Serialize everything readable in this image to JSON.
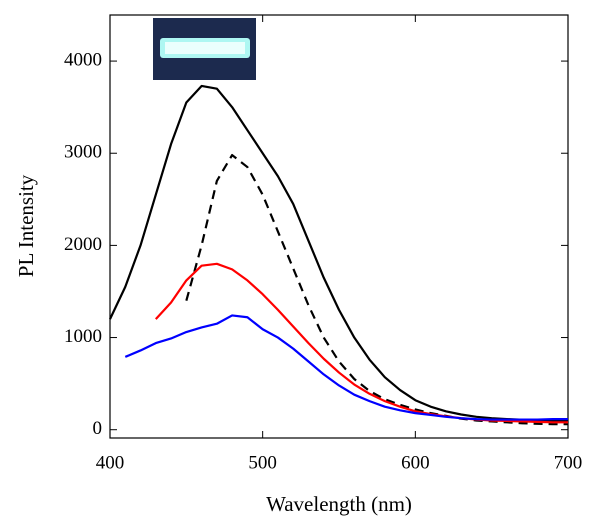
{
  "chart_data": {
    "type": "line",
    "x_label": "Wavelength (nm)",
    "y_label": "PL Intensity",
    "x": [
      400,
      410,
      420,
      430,
      440,
      450,
      460,
      470,
      480,
      490,
      500,
      510,
      520,
      530,
      540,
      550,
      560,
      570,
      580,
      590,
      600,
      610,
      620,
      630,
      640,
      650,
      660,
      670,
      680,
      690,
      700
    ],
    "series": [
      {
        "color": "#000000",
        "dashed": false,
        "values": [
          1200,
          1550,
          2000,
          2550,
          3100,
          3550,
          3730,
          3700,
          3500,
          3250,
          3000,
          2750,
          2450,
          2050,
          1650,
          1300,
          1000,
          760,
          570,
          430,
          320,
          250,
          200,
          165,
          140,
          125,
          115,
          108,
          102,
          98,
          95
        ]
      },
      {
        "color": "#000000",
        "dashed": true,
        "values": [
          null,
          null,
          null,
          null,
          null,
          1400,
          2000,
          2700,
          2980,
          2850,
          2550,
          2150,
          1750,
          1350,
          1000,
          740,
          550,
          420,
          330,
          270,
          220,
          180,
          150,
          120,
          100,
          90,
          80,
          70,
          65,
          60,
          60
        ]
      },
      {
        "color": "#ff0000",
        "dashed": false,
        "values": [
          null,
          null,
          null,
          1200,
          1380,
          1620,
          1780,
          1800,
          1740,
          1620,
          1470,
          1300,
          1120,
          940,
          770,
          620,
          490,
          390,
          310,
          250,
          200,
          170,
          145,
          125,
          110,
          100,
          95,
          90,
          85,
          80,
          80
        ]
      },
      {
        "color": "#0000ff",
        "dashed": false,
        "values": [
          null,
          790,
          860,
          940,
          990,
          1060,
          1110,
          1150,
          1240,
          1220,
          1090,
          1000,
          880,
          740,
          600,
          480,
          380,
          310,
          250,
          210,
          180,
          160,
          140,
          125,
          115,
          110,
          110,
          110,
          110,
          115,
          115
        ]
      }
    ],
    "xlim": [
      400,
      700
    ],
    "xticks": [
      400,
      500,
      600,
      700
    ],
    "ylim": [
      -90,
      4500
    ],
    "yticks": [
      0,
      1000,
      2000,
      3000,
      4000
    ]
  }
}
